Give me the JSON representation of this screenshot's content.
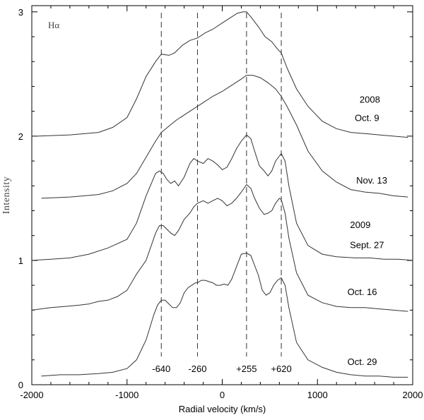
{
  "chart_data": {
    "type": "line",
    "title": "Hα",
    "xlabel": "Radial velocity (km/s)",
    "ylabel": "Intensity",
    "xlim": [
      -2000,
      2000
    ],
    "ylim": [
      0,
      3.05
    ],
    "x_ticks": [
      -2000,
      -1000,
      0,
      1000,
      2000
    ],
    "y_ticks": [
      0,
      1,
      2,
      3
    ],
    "grid": false,
    "reference_lines": [
      {
        "x": -640,
        "label": "-640"
      },
      {
        "x": -260,
        "label": "-260"
      },
      {
        "x": 255,
        "label": "+255"
      },
      {
        "x": 620,
        "label": "+620"
      }
    ],
    "annotations": [
      {
        "text": "2008",
        "x": 1550,
        "y": 2.27
      },
      {
        "text": "Oct. 9",
        "x": 1520,
        "y": 2.12
      },
      {
        "text": "Nov. 13",
        "x": 1570,
        "y": 1.62
      },
      {
        "text": "2009",
        "x": 1450,
        "y": 1.26
      },
      {
        "text": "Sept. 27",
        "x": 1520,
        "y": 1.1
      },
      {
        "text": "Oct. 16",
        "x": 1470,
        "y": 0.72
      },
      {
        "text": "Oct. 29",
        "x": 1470,
        "y": 0.16
      }
    ],
    "series": [
      {
        "name": "Oct. 9",
        "x": [
          -1950,
          -1600,
          -1300,
          -1150,
          -1000,
          -900,
          -800,
          -700,
          -640,
          -560,
          -500,
          -420,
          -340,
          -260,
          -180,
          -100,
          0,
          80,
          160,
          220,
          255,
          300,
          380,
          450,
          520,
          580,
          620,
          680,
          780,
          900,
          1050,
          1200,
          1350,
          1500,
          1650,
          1800,
          1950
        ],
        "y": [
          2.0,
          2.01,
          2.03,
          2.07,
          2.15,
          2.3,
          2.48,
          2.6,
          2.66,
          2.65,
          2.67,
          2.73,
          2.77,
          2.79,
          2.83,
          2.86,
          2.91,
          2.95,
          2.99,
          3.0,
          3.0,
          2.96,
          2.88,
          2.8,
          2.76,
          2.7,
          2.67,
          2.55,
          2.38,
          2.24,
          2.12,
          2.06,
          2.03,
          2.02,
          2.01,
          2.0,
          1.99
        ]
      },
      {
        "name": "Nov. 13",
        "x": [
          -1900,
          -1600,
          -1300,
          -1150,
          -1000,
          -900,
          -800,
          -700,
          -640,
          -560,
          -480,
          -400,
          -300,
          -200,
          -100,
          0,
          100,
          200,
          255,
          320,
          400,
          480,
          560,
          620,
          680,
          780,
          900,
          1050,
          1200,
          1350,
          1500,
          1650,
          1800,
          1950
        ],
        "y": [
          1.5,
          1.51,
          1.53,
          1.56,
          1.62,
          1.7,
          1.83,
          1.96,
          2.03,
          2.08,
          2.13,
          2.17,
          2.22,
          2.27,
          2.32,
          2.36,
          2.41,
          2.46,
          2.49,
          2.49,
          2.47,
          2.43,
          2.38,
          2.32,
          2.24,
          2.09,
          1.88,
          1.72,
          1.63,
          1.57,
          1.55,
          1.54,
          1.52,
          1.51
        ]
      },
      {
        "name": "Sept. 27",
        "x": [
          -2000,
          -1800,
          -1600,
          -1400,
          -1200,
          -1000,
          -900,
          -800,
          -700,
          -660,
          -620,
          -580,
          -540,
          -500,
          -460,
          -400,
          -340,
          -300,
          -260,
          -200,
          -150,
          -100,
          -50,
          0,
          50,
          100,
          150,
          200,
          255,
          300,
          340,
          390,
          440,
          480,
          520,
          560,
          600,
          620,
          660,
          700,
          780,
          900,
          1050,
          1200,
          1400,
          1550,
          1700,
          1850,
          2000
        ],
        "y": [
          1.0,
          1.01,
          1.02,
          1.05,
          1.1,
          1.17,
          1.3,
          1.52,
          1.7,
          1.72,
          1.7,
          1.65,
          1.62,
          1.64,
          1.6,
          1.67,
          1.78,
          1.82,
          1.8,
          1.78,
          1.82,
          1.8,
          1.77,
          1.73,
          1.75,
          1.82,
          1.9,
          1.96,
          2.01,
          1.98,
          1.88,
          1.76,
          1.72,
          1.68,
          1.72,
          1.8,
          1.84,
          1.86,
          1.8,
          1.6,
          1.3,
          1.12,
          1.05,
          1.03,
          1.02,
          1.02,
          1.01,
          1.01,
          1.0
        ]
      },
      {
        "name": "Oct. 16",
        "x": [
          -2000,
          -1800,
          -1650,
          -1500,
          -1400,
          -1300,
          -1200,
          -1100,
          -1000,
          -900,
          -800,
          -700,
          -660,
          -620,
          -580,
          -540,
          -500,
          -460,
          -400,
          -340,
          -300,
          -260,
          -200,
          -150,
          -100,
          -50,
          0,
          50,
          100,
          150,
          200,
          255,
          300,
          340,
          390,
          440,
          480,
          520,
          560,
          600,
          620,
          660,
          700,
          780,
          900,
          1050,
          1200,
          1350,
          1500,
          1650,
          1800,
          1950
        ],
        "y": [
          0.6,
          0.62,
          0.63,
          0.64,
          0.65,
          0.67,
          0.68,
          0.71,
          0.76,
          0.89,
          1.0,
          1.22,
          1.28,
          1.28,
          1.25,
          1.22,
          1.2,
          1.24,
          1.33,
          1.38,
          1.43,
          1.46,
          1.48,
          1.46,
          1.48,
          1.5,
          1.48,
          1.44,
          1.46,
          1.5,
          1.55,
          1.61,
          1.58,
          1.5,
          1.42,
          1.37,
          1.38,
          1.4,
          1.46,
          1.5,
          1.49,
          1.38,
          1.18,
          0.9,
          0.72,
          0.66,
          0.63,
          0.62,
          0.62,
          0.61,
          0.6,
          0.59
        ]
      },
      {
        "name": "Oct. 29",
        "x": [
          -1900,
          -1700,
          -1500,
          -1300,
          -1150,
          -1000,
          -900,
          -800,
          -720,
          -680,
          -640,
          -600,
          -560,
          -520,
          -480,
          -440,
          -400,
          -360,
          -320,
          -280,
          -260,
          -220,
          -180,
          -140,
          -100,
          -60,
          -20,
          20,
          60,
          100,
          150,
          200,
          255,
          300,
          340,
          380,
          420,
          460,
          500,
          540,
          580,
          620,
          660,
          700,
          780,
          900,
          1050,
          1200,
          1350,
          1500,
          1650,
          1800,
          1950
        ],
        "y": [
          0.07,
          0.08,
          0.08,
          0.09,
          0.1,
          0.13,
          0.2,
          0.36,
          0.56,
          0.64,
          0.68,
          0.68,
          0.65,
          0.62,
          0.62,
          0.66,
          0.74,
          0.78,
          0.8,
          0.82,
          0.82,
          0.84,
          0.84,
          0.83,
          0.82,
          0.8,
          0.8,
          0.81,
          0.8,
          0.85,
          0.95,
          1.05,
          1.06,
          1.04,
          0.96,
          0.88,
          0.76,
          0.72,
          0.74,
          0.8,
          0.84,
          0.86,
          0.8,
          0.62,
          0.34,
          0.2,
          0.14,
          0.1,
          0.08,
          0.07,
          0.07,
          0.06,
          0.06
        ]
      }
    ]
  }
}
